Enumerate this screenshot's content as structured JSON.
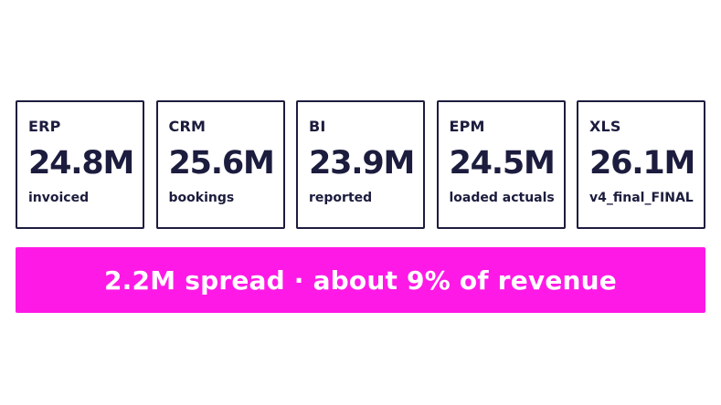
{
  "cards": [
    {
      "label": "ERP",
      "value": "24.8M",
      "caption": "invoiced"
    },
    {
      "label": "CRM",
      "value": "25.6M",
      "caption": "bookings"
    },
    {
      "label": "BI",
      "value": "23.9M",
      "caption": "reported"
    },
    {
      "label": "EPM",
      "value": "24.5M",
      "caption": "loaded actuals"
    },
    {
      "label": "XLS",
      "value": "26.1M",
      "caption": "v4_final_FINAL"
    }
  ],
  "banner": {
    "text": "2.2M spread · about 9% of revenue"
  },
  "colors": {
    "ink": "#1c1c3e",
    "accent": "#ff19e6",
    "background": "#ffffff"
  }
}
